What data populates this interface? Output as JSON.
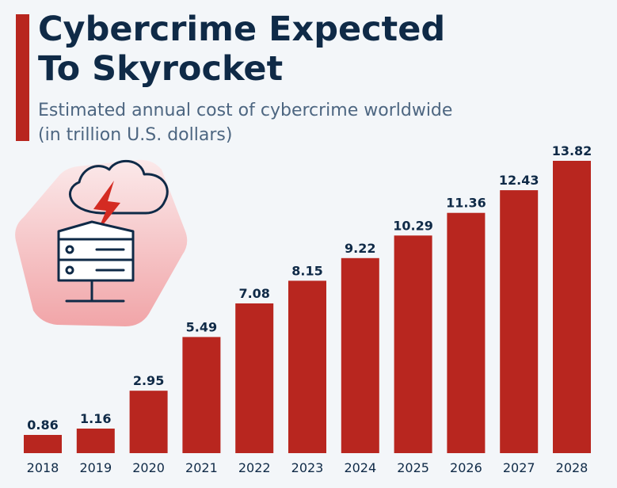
{
  "header": {
    "title_line1": "Cybercrime Expected",
    "title_line2": "To Skyrocket",
    "subtitle_line1": "Estimated annual cost of cybercrime worldwide",
    "subtitle_line2": "(in trillion U.S. dollars)"
  },
  "colors": {
    "bar": "#b8261f",
    "title": "#0f2a47",
    "subtitle": "#4d6681",
    "label": "#0f2a47",
    "background": "#f3f6f9"
  },
  "illustration": {
    "icon": "server-lightning-cloud-icon"
  },
  "chart_data": {
    "type": "bar",
    "title": "Cybercrime Expected To Skyrocket",
    "subtitle": "Estimated annual cost of cybercrime worldwide (in trillion U.S. dollars)",
    "xlabel": "",
    "ylabel": "",
    "categories": [
      "2018",
      "2019",
      "2020",
      "2021",
      "2022",
      "2023",
      "2024",
      "2025",
      "2026",
      "2027",
      "2028"
    ],
    "values": [
      0.86,
      1.16,
      2.95,
      5.49,
      7.08,
      8.15,
      9.22,
      10.29,
      11.36,
      12.43,
      13.82
    ],
    "value_labels": [
      "0.86",
      "1.16",
      "2.95",
      "5.49",
      "7.08",
      "8.15",
      "9.22",
      "10.29",
      "11.36",
      "12.43",
      "13.82"
    ],
    "ylim": [
      0,
      13.82
    ],
    "grid": false,
    "legend": "none"
  }
}
